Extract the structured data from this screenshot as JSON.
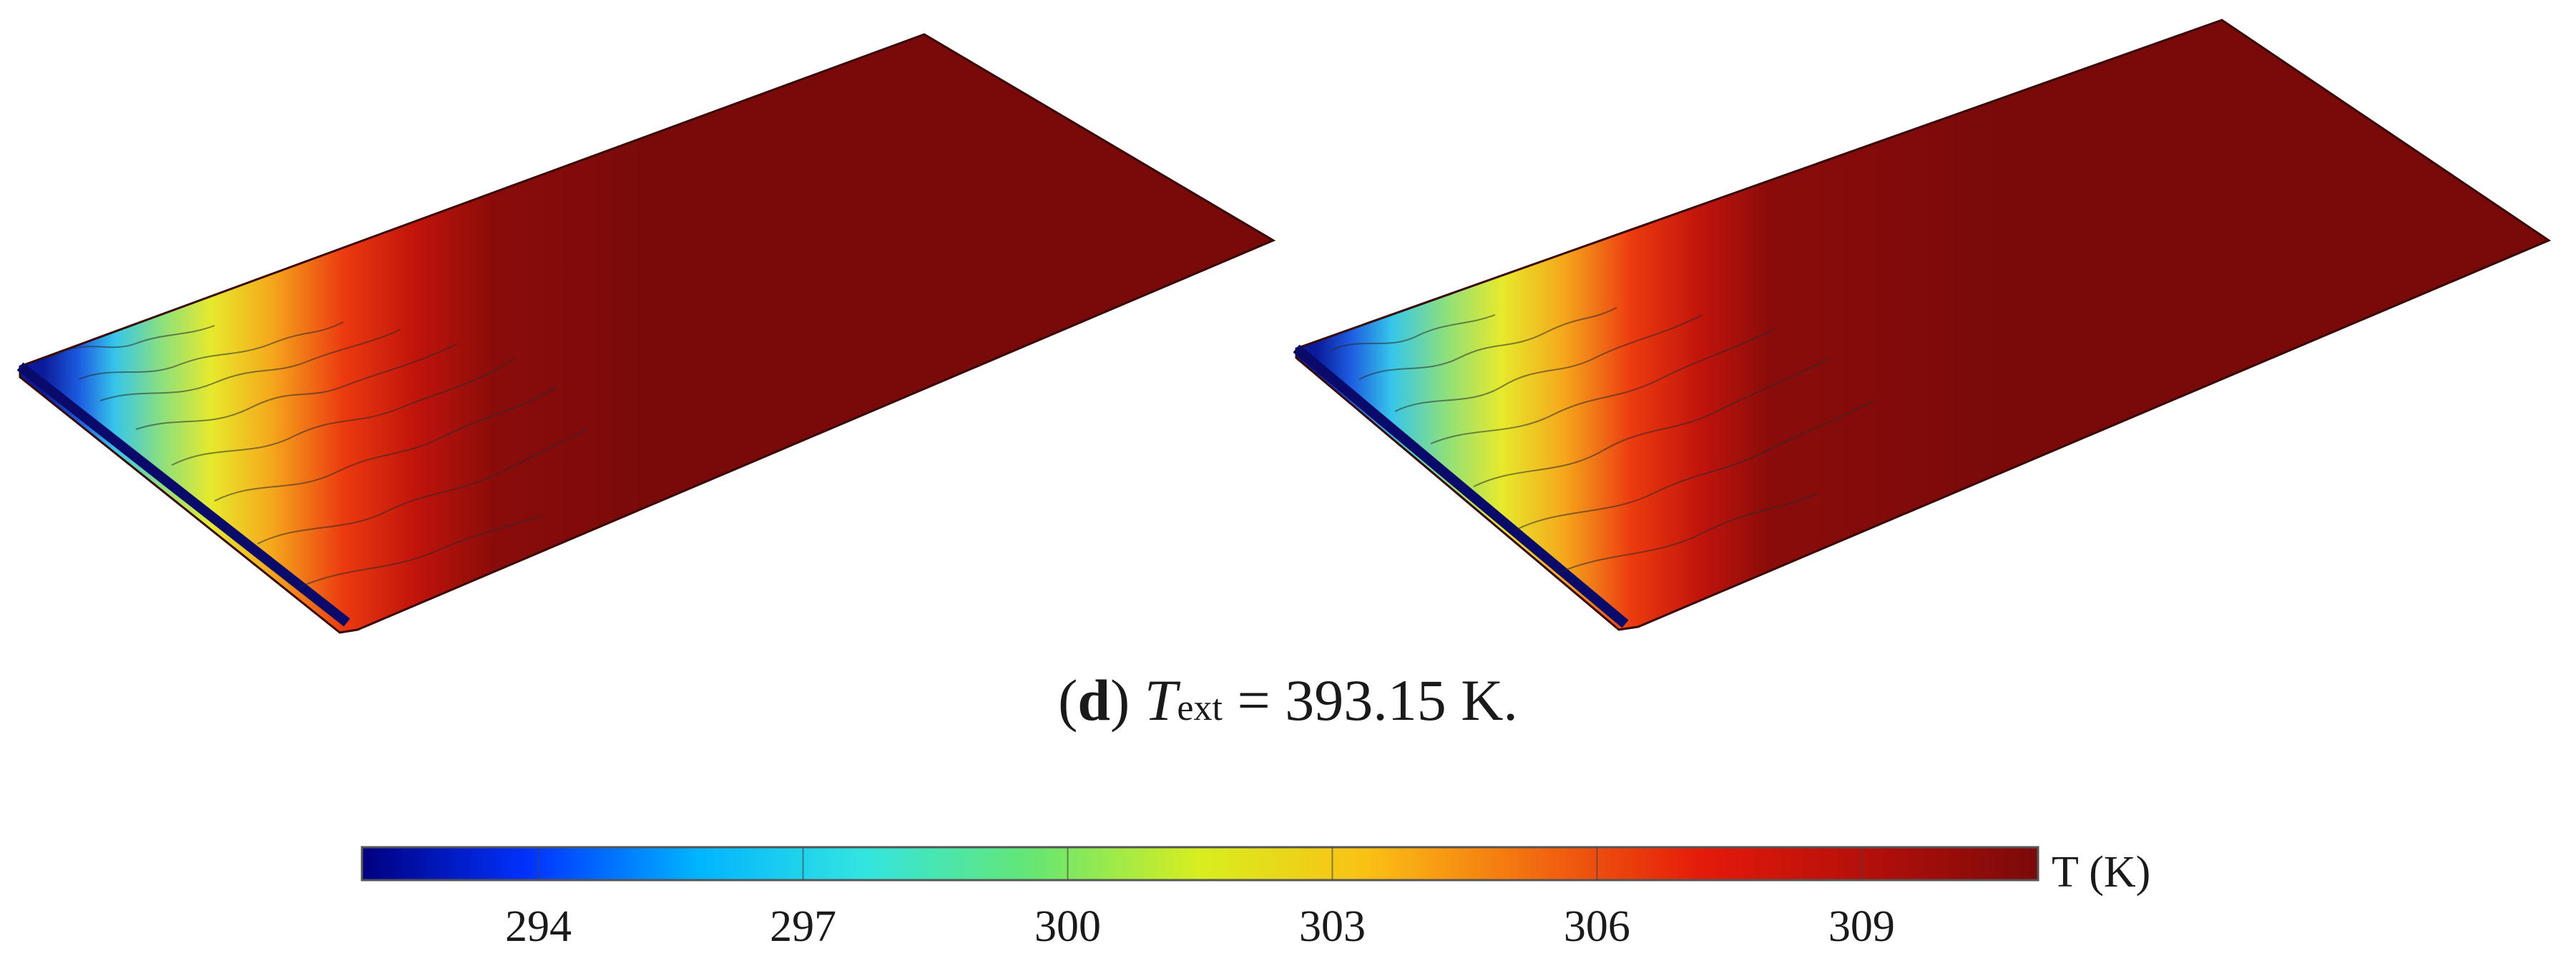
{
  "caption": {
    "panel": "d",
    "symbol": "T",
    "subscript": "ext",
    "equals": " = ",
    "value": "393.15 K."
  },
  "colorbar": {
    "label": "T (K)",
    "min": 292,
    "max": 311,
    "ticks": [
      "294",
      "297",
      "300",
      "303",
      "306",
      "309"
    ],
    "tick_values": [
      294,
      297,
      300,
      303,
      306,
      309
    ],
    "colormap": [
      "#00007f",
      "#0033ff",
      "#00b4ff",
      "#33e5e0",
      "#66e673",
      "#d8ee1e",
      "#fbc015",
      "#f26b0f",
      "#e41a0a",
      "#b30f0a",
      "#7a0a0a"
    ]
  },
  "panels": [
    {
      "name": "left-plate"
    },
    {
      "name": "right-plate"
    }
  ]
}
